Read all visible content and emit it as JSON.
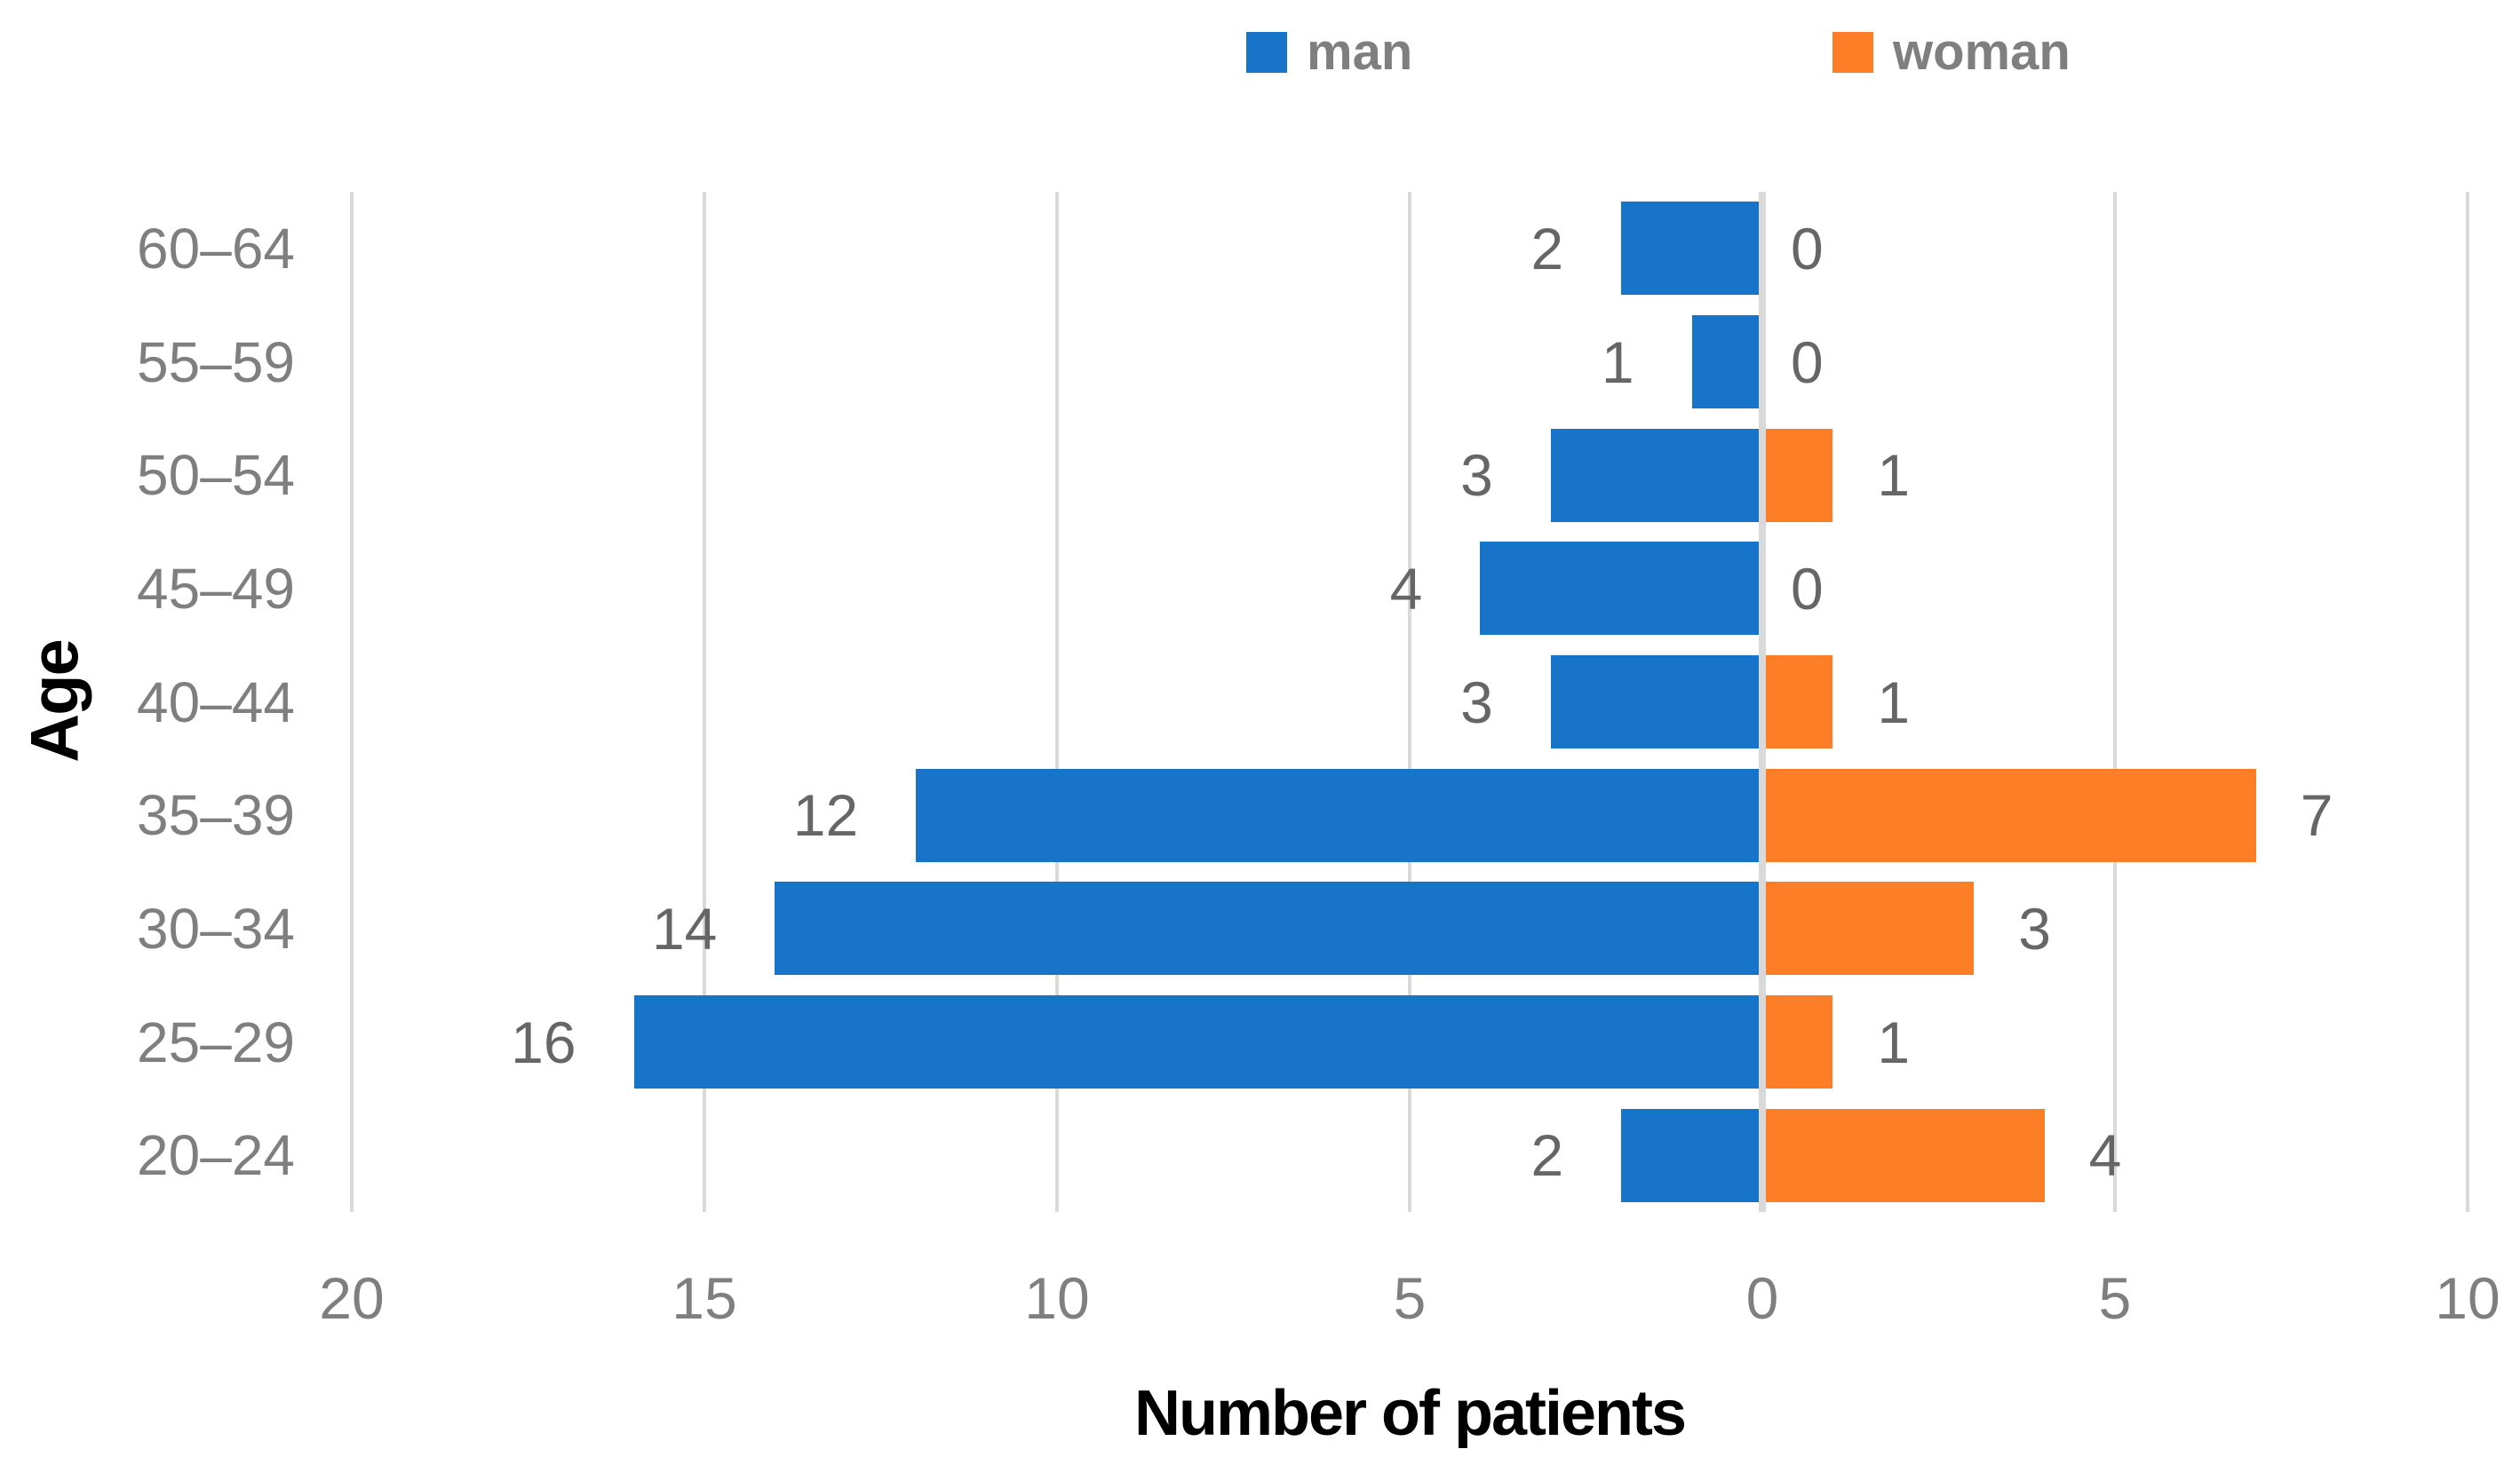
{
  "legend": {
    "items": [
      {
        "label": "man",
        "color": "#1874C9"
      },
      {
        "label": "woman",
        "color": "#FD7E27"
      }
    ]
  },
  "axes": {
    "y_title": "Age",
    "x_title": "Number of patients",
    "x_tick_labels": [
      "20",
      "15",
      "10",
      "5",
      "0",
      "5",
      "10"
    ],
    "y_tick_labels": [
      "60–64",
      "55–59",
      "50–54",
      "45–49",
      "40–44",
      "35–39",
      "30–34",
      "25–29",
      "20–24"
    ]
  },
  "chart_data": {
    "type": "bar",
    "subtype": "diverging-horizontal-pyramid",
    "categories": [
      "60–64",
      "55–59",
      "50–54",
      "45–49",
      "40–44",
      "35–39",
      "30–34",
      "25–29",
      "20–24"
    ],
    "series": [
      {
        "name": "man",
        "side": "left",
        "color": "#1874C9",
        "values": [
          2,
          1,
          3,
          4,
          3,
          12,
          14,
          16,
          2
        ]
      },
      {
        "name": "woman",
        "side": "right",
        "color": "#FD7E27",
        "values": [
          0,
          0,
          1,
          0,
          1,
          7,
          3,
          1,
          4
        ]
      }
    ],
    "title": "",
    "xlabel": "Number of patients",
    "ylabel": "Age",
    "x_axis": {
      "tick_values": [
        20,
        15,
        10,
        5,
        0,
        5,
        10
      ],
      "left_max": 20,
      "right_max": 10,
      "tick_step": 5
    },
    "grid": true,
    "gridline_color": "#D9D9D9",
    "data_labels": "outside-end",
    "legend_position": "top"
  },
  "colors": {
    "man": "#1874C9",
    "woman": "#FD7E27",
    "gridline": "#D9D9D9",
    "tick_label": "#7F7F7F",
    "data_label": "#666666",
    "axis_title": "#000000",
    "background": "#FFFFFF"
  }
}
